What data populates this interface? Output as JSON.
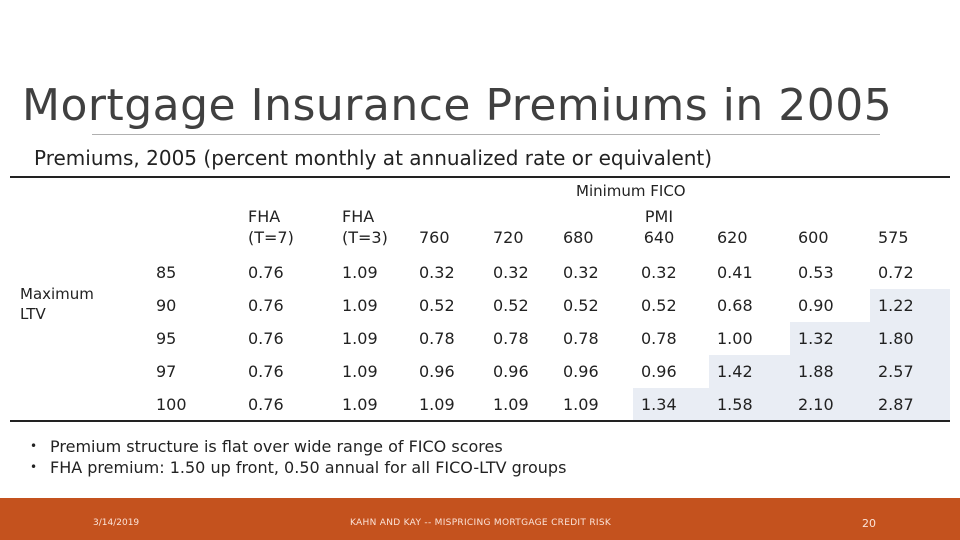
{
  "title": "Mortgage Insurance Premiums in 2005",
  "subtitle": "Premiums, 2005 (percent monthly at annualized rate or equivalent)",
  "table": {
    "column_group_label": "Minimum FICO",
    "row_group_label": "Maximum LTV",
    "headers": [
      {
        "line1": "FHA",
        "line2": "(T=7)"
      },
      {
        "line1": "FHA",
        "line2": "(T=3)"
      },
      {
        "line1": "",
        "line2": "760"
      },
      {
        "line1": "",
        "line2": "720"
      },
      {
        "line1": "",
        "line2": "680"
      },
      {
        "line1": "PMI",
        "line2": "640"
      },
      {
        "line1": "",
        "line2": "620"
      },
      {
        "line1": "",
        "line2": "600"
      },
      {
        "line1": "",
        "line2": "575"
      }
    ],
    "rows": [
      {
        "ltv": "85",
        "values": [
          "0.76",
          "1.09",
          "0.32",
          "0.32",
          "0.32",
          "0.32",
          "0.41",
          "0.53",
          "0.72"
        ],
        "shaded": [
          false,
          false,
          false,
          false,
          false,
          false,
          false,
          false,
          false
        ]
      },
      {
        "ltv": "90",
        "values": [
          "0.76",
          "1.09",
          "0.52",
          "0.52",
          "0.52",
          "0.52",
          "0.68",
          "0.90",
          "1.22"
        ],
        "shaded": [
          false,
          false,
          false,
          false,
          false,
          false,
          false,
          false,
          true
        ]
      },
      {
        "ltv": "95",
        "values": [
          "0.76",
          "1.09",
          "0.78",
          "0.78",
          "0.78",
          "0.78",
          "1.00",
          "1.32",
          "1.80"
        ],
        "shaded": [
          false,
          false,
          false,
          false,
          false,
          false,
          false,
          true,
          true
        ]
      },
      {
        "ltv": "97",
        "values": [
          "0.76",
          "1.09",
          "0.96",
          "0.96",
          "0.96",
          "0.96",
          "1.42",
          "1.88",
          "2.57"
        ],
        "shaded": [
          false,
          false,
          false,
          false,
          false,
          false,
          true,
          true,
          true
        ]
      },
      {
        "ltv": "100",
        "values": [
          "0.76",
          "1.09",
          "1.09",
          "1.09",
          "1.09",
          "1.34",
          "1.58",
          "2.10",
          "2.87"
        ],
        "shaded": [
          false,
          false,
          false,
          false,
          false,
          true,
          true,
          true,
          true
        ]
      }
    ]
  },
  "bullets": [
    "Premium structure is flat over wide range of FICO scores",
    "FHA premium: 1.50 up front, 0.50 annual for all FICO-LTV groups"
  ],
  "footer": {
    "date": "3/14/2019",
    "center": "KAHN AND KAY -- MISPRICING MORTGAGE CREDIT RISK",
    "page": "20"
  },
  "colors": {
    "footer_bar": "#c4521e",
    "shaded_cell": "#e9edf4"
  }
}
